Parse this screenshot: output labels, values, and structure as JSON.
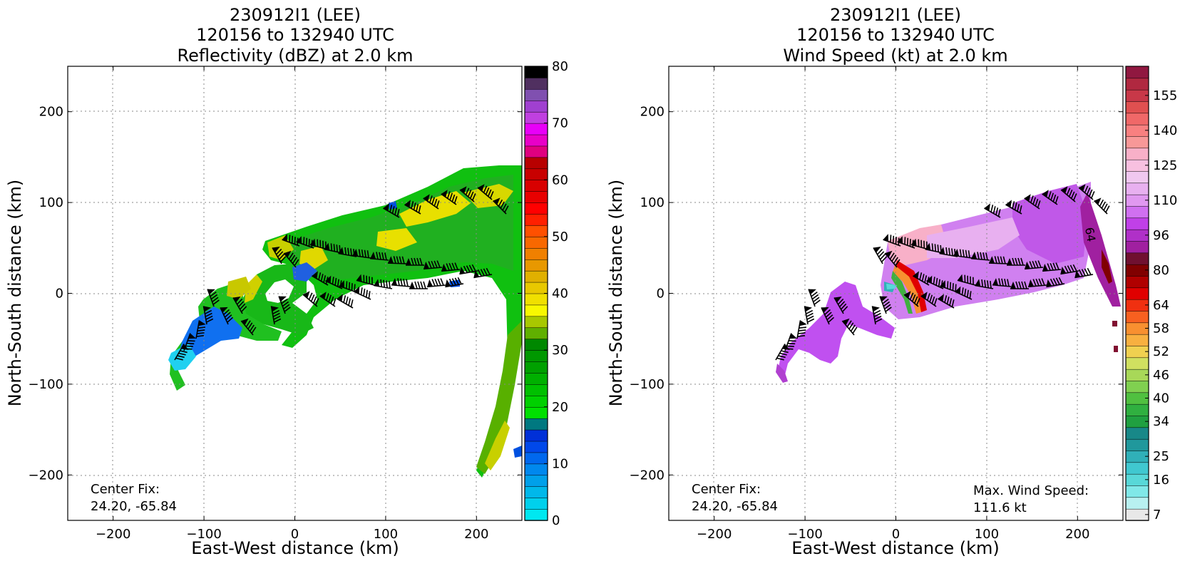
{
  "panels": [
    {
      "title_lines": [
        "230912I1 (LEE)",
        "120156 to 132940 UTC",
        "Reflectivity (dBZ) at 2.0 km"
      ],
      "center_fix": [
        "Center Fix:",
        "24.20, -65.84"
      ],
      "max_wind": null
    },
    {
      "title_lines": [
        "230912I1 (LEE)",
        "120156 to 132940 UTC",
        "Wind Speed (kt) at 2.0 km"
      ],
      "center_fix": [
        "Center Fix:",
        "24.20, -65.84"
      ],
      "max_wind": [
        "Max. Wind Speed:",
        "111.6 kt"
      ]
    }
  ],
  "chart_data": [
    {
      "type": "heatmap",
      "title": "230912I1 (LEE) 120156 to 132940 UTC Reflectivity (dBZ) at 2.0 km",
      "xlabel": "East-West distance (km)",
      "ylabel": "North-South distance (km)",
      "xlim": [
        -250,
        250
      ],
      "ylim": [
        -250,
        250
      ],
      "x_ticks": [
        -200,
        -100,
        0,
        100,
        200
      ],
      "y_ticks": [
        -200,
        -100,
        0,
        100,
        200
      ],
      "x_tick_labels": [
        "−200",
        "−100",
        "0",
        "100",
        "200"
      ],
      "y_tick_labels": [
        "−200",
        "−100",
        "0",
        "100",
        "200"
      ],
      "grid": true,
      "colorbar": {
        "min": 0,
        "max": 80,
        "tick_values": [
          0,
          10,
          20,
          30,
          40,
          50,
          60,
          70,
          80
        ],
        "tick_labels": [
          "0",
          "10",
          "20",
          "30",
          "40",
          "50",
          "60",
          "70",
          "80"
        ],
        "colors": [
          "#00e8f0",
          "#00d0ec",
          "#00b8ea",
          "#00a0ea",
          "#0088ee",
          "#0068ee",
          "#0048ea",
          "#0030d8",
          "#007880",
          "#00e000",
          "#00d000",
          "#00c000",
          "#00b000",
          "#00a000",
          "#009800",
          "#008800",
          "#60b000",
          "#a8c800",
          "#f8f800",
          "#f0e000",
          "#e8c800",
          "#e0b000",
          "#e89800",
          "#f08000",
          "#f86800",
          "#ff5000",
          "#ff2000",
          "#ff0000",
          "#e80000",
          "#d80000",
          "#c80000",
          "#b80000",
          "#e00080",
          "#e800c8",
          "#e800f8",
          "#c040e0",
          "#a040d0",
          "#8050b0",
          "#503060",
          "#000000"
        ]
      },
      "wind_barbs": true
    },
    {
      "type": "heatmap",
      "title": "230912I1 (LEE) 120156 to 132940 UTC Wind Speed (kt) at 2.0 km",
      "xlabel": "East-West distance (km)",
      "ylabel": "North-South distance (km)",
      "xlim": [
        -250,
        250
      ],
      "ylim": [
        -250,
        250
      ],
      "x_ticks": [
        -200,
        -100,
        0,
        100,
        200
      ],
      "y_ticks": [
        -200,
        -100,
        0,
        100,
        200
      ],
      "x_tick_labels": [
        "−200",
        "−100",
        "0",
        "100",
        "200"
      ],
      "y_tick_labels": [
        "−200",
        "−100",
        "0",
        "100",
        "200"
      ],
      "grid": true,
      "contour_label": "64",
      "colorbar": {
        "tick_labels": [
          "7",
          "16",
          "25",
          "34",
          "40",
          "46",
          "52",
          "58",
          "64",
          "80",
          "96",
          "110",
          "125",
          "140",
          "155"
        ],
        "tick_band_index": [
          0,
          3,
          5,
          8,
          10,
          12,
          14,
          16,
          18,
          21,
          24,
          27,
          30,
          33,
          36
        ],
        "colors": [
          "#e8e8e8",
          "#b8f0f0",
          "#80e8e8",
          "#58d8d8",
          "#40c8d0",
          "#30b0b8",
          "#20989c",
          "#188888",
          "#20a040",
          "#30b040",
          "#50c040",
          "#80d050",
          "#a8d858",
          "#d0e060",
          "#f0d050",
          "#f8b040",
          "#f89030",
          "#f86020",
          "#f03010",
          "#e00000",
          "#b00000",
          "#800000",
          "#701030",
          "#a020a0",
          "#b030c8",
          "#c040e8",
          "#d070f0",
          "#e098f0",
          "#e8b0f0",
          "#f0c8f0",
          "#f8c0e0",
          "#f8b0c8",
          "#f89898",
          "#f88080",
          "#f06868",
          "#e05050",
          "#c83848",
          "#b02840",
          "#901840"
        ]
      },
      "wind_barbs": true
    }
  ]
}
